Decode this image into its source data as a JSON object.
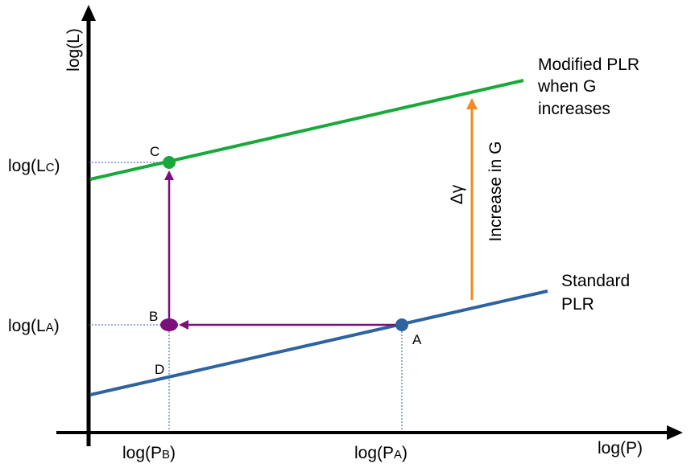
{
  "axes": {
    "y_label": "log(L)",
    "x_label": "log(P)"
  },
  "y_ticks": [
    {
      "text": "log(L",
      "sub": "C",
      "end": ")"
    },
    {
      "text": "log(L",
      "sub": "A",
      "end": ")"
    }
  ],
  "x_ticks": [
    {
      "text": "log(P",
      "sub": "B",
      "end": ")"
    },
    {
      "text": "log(P",
      "sub": "A",
      "end": ")"
    }
  ],
  "lines": [
    {
      "label": [
        "Modified PLR",
        "when G",
        "increases"
      ]
    },
    {
      "label": [
        "Standard",
        "PLR"
      ]
    }
  ],
  "points": {
    "a": "A",
    "b": "B",
    "c": "C",
    "d": "D"
  },
  "shift": {
    "symbol": "Δγ",
    "label": "Increase in G"
  }
}
